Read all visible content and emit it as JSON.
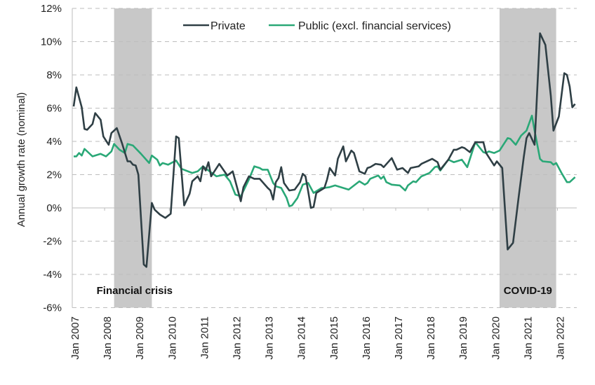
{
  "chart_data": {
    "type": "line",
    "title": "",
    "ylabel": "Annual growth rate (nominal)",
    "xlabel": "",
    "ylim": [
      -6,
      12
    ],
    "yticks": [
      -6,
      -4,
      -2,
      0,
      2,
      4,
      6,
      8,
      10,
      12
    ],
    "ytick_labels": [
      "-6%",
      "-4%",
      "-2%",
      "0%",
      "2%",
      "4%",
      "6%",
      "8%",
      "10%",
      "12%"
    ],
    "xlim": [
      "2007-01",
      "2022-07"
    ],
    "xtick_labels": [
      "Jan 2007",
      "Jan 2008",
      "Jan 2009",
      "Jan 2010",
      "Jan 2011",
      "Jan 2012",
      "Jan 2013",
      "Jan 2014",
      "Jan 2015",
      "Jan 2016",
      "Jan 2017",
      "Jan 2018",
      "Jan 2019",
      "Jan 2020",
      "Jan 2021",
      "Jan 2022"
    ],
    "grid": "horizontal dashed",
    "legend_placement": "top-center",
    "shaded_periods": [
      {
        "label": "Financial crisis",
        "start": "2008-04",
        "end": "2009-06",
        "color": "#c8c8c8"
      },
      {
        "label": "COVID-19",
        "start": "2020-03",
        "end": "2021-12",
        "color": "#c8c8c8"
      }
    ],
    "series": [
      {
        "name": "Private",
        "color": "#2f3f45",
        "points": [
          [
            "2007-01",
            6.1
          ],
          [
            "2007-02",
            7.25
          ],
          [
            "2007-04",
            6.05
          ],
          [
            "2007-05",
            4.75
          ],
          [
            "2007-06",
            4.7
          ],
          [
            "2007-08",
            5.05
          ],
          [
            "2007-09",
            5.7
          ],
          [
            "2007-11",
            5.3
          ],
          [
            "2007-12",
            4.3
          ],
          [
            "2008-02",
            3.8
          ],
          [
            "2008-03",
            4.5
          ],
          [
            "2008-05",
            4.8
          ],
          [
            "2008-07",
            3.85
          ],
          [
            "2008-09",
            2.8
          ],
          [
            "2008-10",
            2.8
          ],
          [
            "2008-11",
            2.6
          ],
          [
            "2008-12",
            2.55
          ],
          [
            "2009-01",
            2.0
          ],
          [
            "2009-03",
            -3.4
          ],
          [
            "2009-04",
            -3.55
          ],
          [
            "2009-06",
            0.3
          ],
          [
            "2009-07",
            -0.1
          ],
          [
            "2009-09",
            -0.4
          ],
          [
            "2009-11",
            -0.6
          ],
          [
            "2010-01",
            -0.35
          ],
          [
            "2010-03",
            4.3
          ],
          [
            "2010-04",
            4.2
          ],
          [
            "2010-06",
            0.15
          ],
          [
            "2010-08",
            0.85
          ],
          [
            "2010-09",
            1.6
          ],
          [
            "2010-11",
            1.9
          ],
          [
            "2010-12",
            1.6
          ],
          [
            "2011-01",
            2.5
          ],
          [
            "2011-02",
            2.25
          ],
          [
            "2011-03",
            2.75
          ],
          [
            "2011-04",
            1.9
          ],
          [
            "2011-07",
            2.65
          ],
          [
            "2011-10",
            1.95
          ],
          [
            "2011-12",
            2.2
          ],
          [
            "2012-03",
            0.4
          ],
          [
            "2012-04",
            1.25
          ],
          [
            "2012-06",
            1.9
          ],
          [
            "2012-08",
            1.75
          ],
          [
            "2012-10",
            1.75
          ],
          [
            "2013-01",
            1.2
          ],
          [
            "2013-02",
            1.05
          ],
          [
            "2013-03",
            0.5
          ],
          [
            "2013-04",
            1.55
          ],
          [
            "2013-05",
            1.8
          ],
          [
            "2013-06",
            2.45
          ],
          [
            "2013-07",
            1.5
          ],
          [
            "2013-09",
            1.05
          ],
          [
            "2013-11",
            1.1
          ],
          [
            "2014-01",
            1.55
          ],
          [
            "2014-02",
            2.05
          ],
          [
            "2014-03",
            1.9
          ],
          [
            "2014-04",
            1.0
          ],
          [
            "2014-05",
            0.0
          ],
          [
            "2014-06",
            0.05
          ],
          [
            "2014-07",
            0.9
          ],
          [
            "2014-10",
            1.2
          ],
          [
            "2014-11",
            1.7
          ],
          [
            "2014-12",
            2.4
          ],
          [
            "2015-02",
            1.95
          ],
          [
            "2015-03",
            2.95
          ],
          [
            "2015-05",
            3.7
          ],
          [
            "2015-06",
            2.8
          ],
          [
            "2015-08",
            3.45
          ],
          [
            "2015-09",
            3.3
          ],
          [
            "2015-11",
            2.2
          ],
          [
            "2016-01",
            2.05
          ],
          [
            "2016-02",
            2.4
          ],
          [
            "2016-03",
            2.45
          ],
          [
            "2016-05",
            2.65
          ],
          [
            "2016-07",
            2.6
          ],
          [
            "2016-08",
            2.45
          ],
          [
            "2016-11",
            3.0
          ],
          [
            "2017-01",
            2.3
          ],
          [
            "2017-03",
            2.4
          ],
          [
            "2017-05",
            2.1
          ],
          [
            "2017-06",
            2.4
          ],
          [
            "2017-09",
            2.5
          ],
          [
            "2017-10",
            2.65
          ],
          [
            "2018-02",
            2.95
          ],
          [
            "2018-04",
            2.75
          ],
          [
            "2018-05",
            2.3
          ],
          [
            "2018-08",
            2.9
          ],
          [
            "2018-10",
            3.5
          ],
          [
            "2018-11",
            3.5
          ],
          [
            "2019-01",
            3.65
          ],
          [
            "2019-02",
            3.6
          ],
          [
            "2019-04",
            3.35
          ],
          [
            "2019-06",
            3.95
          ],
          [
            "2019-09",
            3.95
          ],
          [
            "2019-10",
            3.3
          ],
          [
            "2020-01",
            2.55
          ],
          [
            "2020-02",
            2.8
          ],
          [
            "2020-04",
            2.4
          ],
          [
            "2020-06",
            -2.5
          ],
          [
            "2020-08",
            -2.1
          ],
          [
            "2020-10",
            0.55
          ],
          [
            "2020-12",
            3.1
          ],
          [
            "2021-01",
            4.2
          ],
          [
            "2021-02",
            4.5
          ],
          [
            "2021-04",
            3.8
          ],
          [
            "2021-06",
            10.5
          ],
          [
            "2021-08",
            9.8
          ],
          [
            "2021-10",
            6.75
          ],
          [
            "2021-11",
            4.65
          ],
          [
            "2022-01",
            5.5
          ],
          [
            "2022-03",
            8.1
          ],
          [
            "2022-04",
            8.0
          ],
          [
            "2022-05",
            7.3
          ],
          [
            "2022-06",
            6.05
          ],
          [
            "2022-07",
            6.25
          ]
        ]
      },
      {
        "name": "Public (excl. financial services)",
        "color": "#2aa877",
        "points": [
          [
            "2007-01",
            3.1
          ],
          [
            "2007-02",
            3.1
          ],
          [
            "2007-03",
            3.3
          ],
          [
            "2007-04",
            3.15
          ],
          [
            "2007-05",
            3.55
          ],
          [
            "2007-08",
            3.1
          ],
          [
            "2007-11",
            3.25
          ],
          [
            "2008-01",
            3.1
          ],
          [
            "2008-03",
            3.4
          ],
          [
            "2008-04",
            3.85
          ],
          [
            "2008-06",
            3.5
          ],
          [
            "2008-08",
            3.3
          ],
          [
            "2008-09",
            3.85
          ],
          [
            "2008-11",
            3.75
          ],
          [
            "2009-02",
            3.25
          ],
          [
            "2009-05",
            2.7
          ],
          [
            "2009-06",
            3.15
          ],
          [
            "2009-08",
            2.9
          ],
          [
            "2009-09",
            2.55
          ],
          [
            "2009-10",
            2.7
          ],
          [
            "2009-12",
            2.6
          ],
          [
            "2010-03",
            2.85
          ],
          [
            "2010-05",
            2.35
          ],
          [
            "2010-09",
            2.1
          ],
          [
            "2010-11",
            2.2
          ],
          [
            "2011-01",
            2.5
          ],
          [
            "2011-03",
            2.25
          ],
          [
            "2011-06",
            1.9
          ],
          [
            "2011-09",
            2.0
          ],
          [
            "2011-11",
            1.6
          ],
          [
            "2012-01",
            0.8
          ],
          [
            "2012-03",
            0.7
          ],
          [
            "2012-06",
            1.7
          ],
          [
            "2012-08",
            2.5
          ],
          [
            "2012-10",
            2.4
          ],
          [
            "2012-11",
            2.3
          ],
          [
            "2013-01",
            2.3
          ],
          [
            "2013-03",
            1.5
          ],
          [
            "2013-04",
            1.3
          ],
          [
            "2013-06",
            1.2
          ],
          [
            "2013-08",
            0.6
          ],
          [
            "2013-09",
            0.1
          ],
          [
            "2013-10",
            0.15
          ],
          [
            "2013-12",
            0.6
          ],
          [
            "2014-02",
            1.4
          ],
          [
            "2014-04",
            1.5
          ],
          [
            "2014-06",
            0.9
          ],
          [
            "2014-09",
            1.2
          ],
          [
            "2014-10",
            1.2
          ],
          [
            "2014-12",
            1.25
          ],
          [
            "2015-02",
            1.35
          ],
          [
            "2015-03",
            1.3
          ],
          [
            "2015-07",
            1.1
          ],
          [
            "2015-11",
            1.6
          ],
          [
            "2016-01",
            1.4
          ],
          [
            "2016-02",
            1.5
          ],
          [
            "2016-03",
            1.75
          ],
          [
            "2016-06",
            1.95
          ],
          [
            "2016-07",
            1.75
          ],
          [
            "2016-08",
            1.9
          ],
          [
            "2016-09",
            1.55
          ],
          [
            "2016-11",
            1.4
          ],
          [
            "2017-02",
            1.35
          ],
          [
            "2017-04",
            1.05
          ],
          [
            "2017-05",
            1.35
          ],
          [
            "2017-07",
            1.6
          ],
          [
            "2017-08",
            1.55
          ],
          [
            "2017-10",
            1.9
          ],
          [
            "2018-01",
            2.1
          ],
          [
            "2018-03",
            2.45
          ],
          [
            "2018-04",
            2.5
          ],
          [
            "2018-05",
            2.25
          ],
          [
            "2018-08",
            2.9
          ],
          [
            "2018-10",
            2.75
          ],
          [
            "2019-01",
            2.9
          ],
          [
            "2019-03",
            2.45
          ],
          [
            "2019-06",
            3.95
          ],
          [
            "2019-09",
            3.35
          ],
          [
            "2019-10",
            3.3
          ],
          [
            "2019-11",
            3.4
          ],
          [
            "2020-01",
            3.3
          ],
          [
            "2020-03",
            3.45
          ],
          [
            "2020-06",
            4.2
          ],
          [
            "2020-07",
            4.15
          ],
          [
            "2020-09",
            3.8
          ],
          [
            "2020-11",
            4.35
          ],
          [
            "2021-01",
            4.65
          ],
          [
            "2021-03",
            5.55
          ],
          [
            "2021-04",
            4.65
          ],
          [
            "2021-06",
            2.95
          ],
          [
            "2021-07",
            2.8
          ],
          [
            "2021-10",
            2.75
          ],
          [
            "2021-11",
            2.6
          ],
          [
            "2021-12",
            2.7
          ],
          [
            "2022-02",
            2.1
          ],
          [
            "2022-04",
            1.55
          ],
          [
            "2022-05",
            1.55
          ],
          [
            "2022-07",
            1.85
          ]
        ]
      }
    ]
  }
}
